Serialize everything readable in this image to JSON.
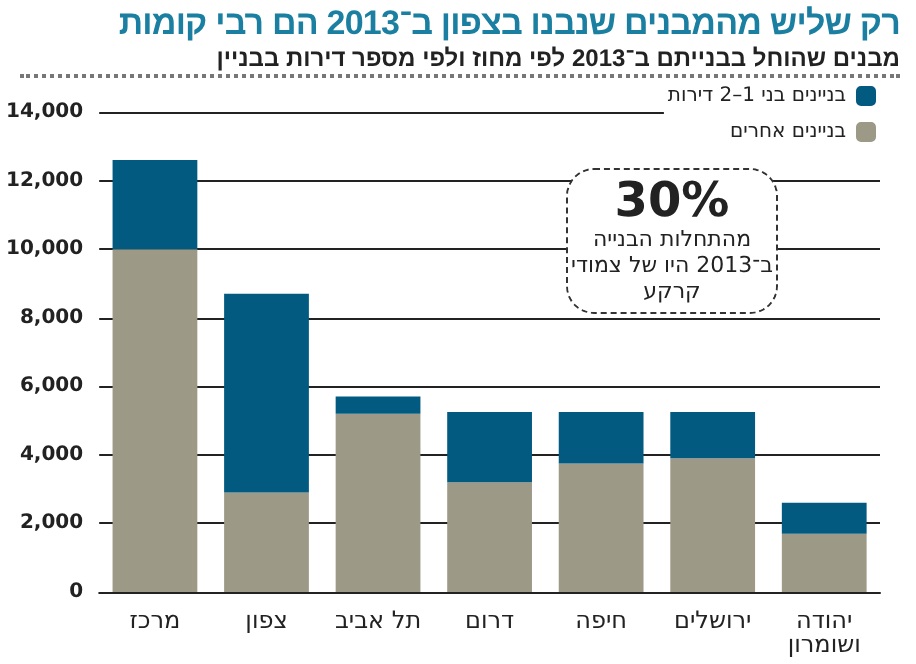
{
  "chart_data": {
    "type": "bar",
    "title": "רק שליש מהמבנים שנבנו בצפון ב־2013 הם רבי קומות",
    "subtitle": "מבנים שהוחל בבנייתם ב־2013 לפי מחוז ולפי מספר דירות בבניין",
    "categories": [
      "מרכז",
      "צפון",
      "תל אביב",
      "דרום",
      "חיפה",
      "ירושלים",
      "יהודה ושומרון"
    ],
    "stacked": true,
    "series": [
      {
        "name": "בניינים אחרים",
        "color": "#9c9a87",
        "values": [
          10000,
          2900,
          5200,
          3200,
          3750,
          3900,
          1700
        ]
      },
      {
        "name": "בניינים בני 1–2 דירות",
        "color": "#035a80",
        "values": [
          2600,
          5800,
          500,
          2050,
          1500,
          1350,
          900
        ]
      }
    ],
    "ylim": [
      0,
      14000
    ],
    "yticks": [
      0,
      {
        "value": 2000,
        "label": "2,000"
      },
      {
        "value": 4000,
        "label": "4,000"
      },
      {
        "value": 6000,
        "label": "6,000"
      },
      {
        "value": 8000,
        "label": "8,000"
      },
      {
        "value": 10000,
        "label": "10,000"
      },
      {
        "value": 12000,
        "label": "12,000"
      },
      {
        "value": 14000,
        "label": "14,000"
      }
    ],
    "grid": "y",
    "legend": "top right",
    "annotations": [
      "30%",
      "מהתחלות הבנייה ב־2013 היו של צמודי קרקע"
    ]
  }
}
